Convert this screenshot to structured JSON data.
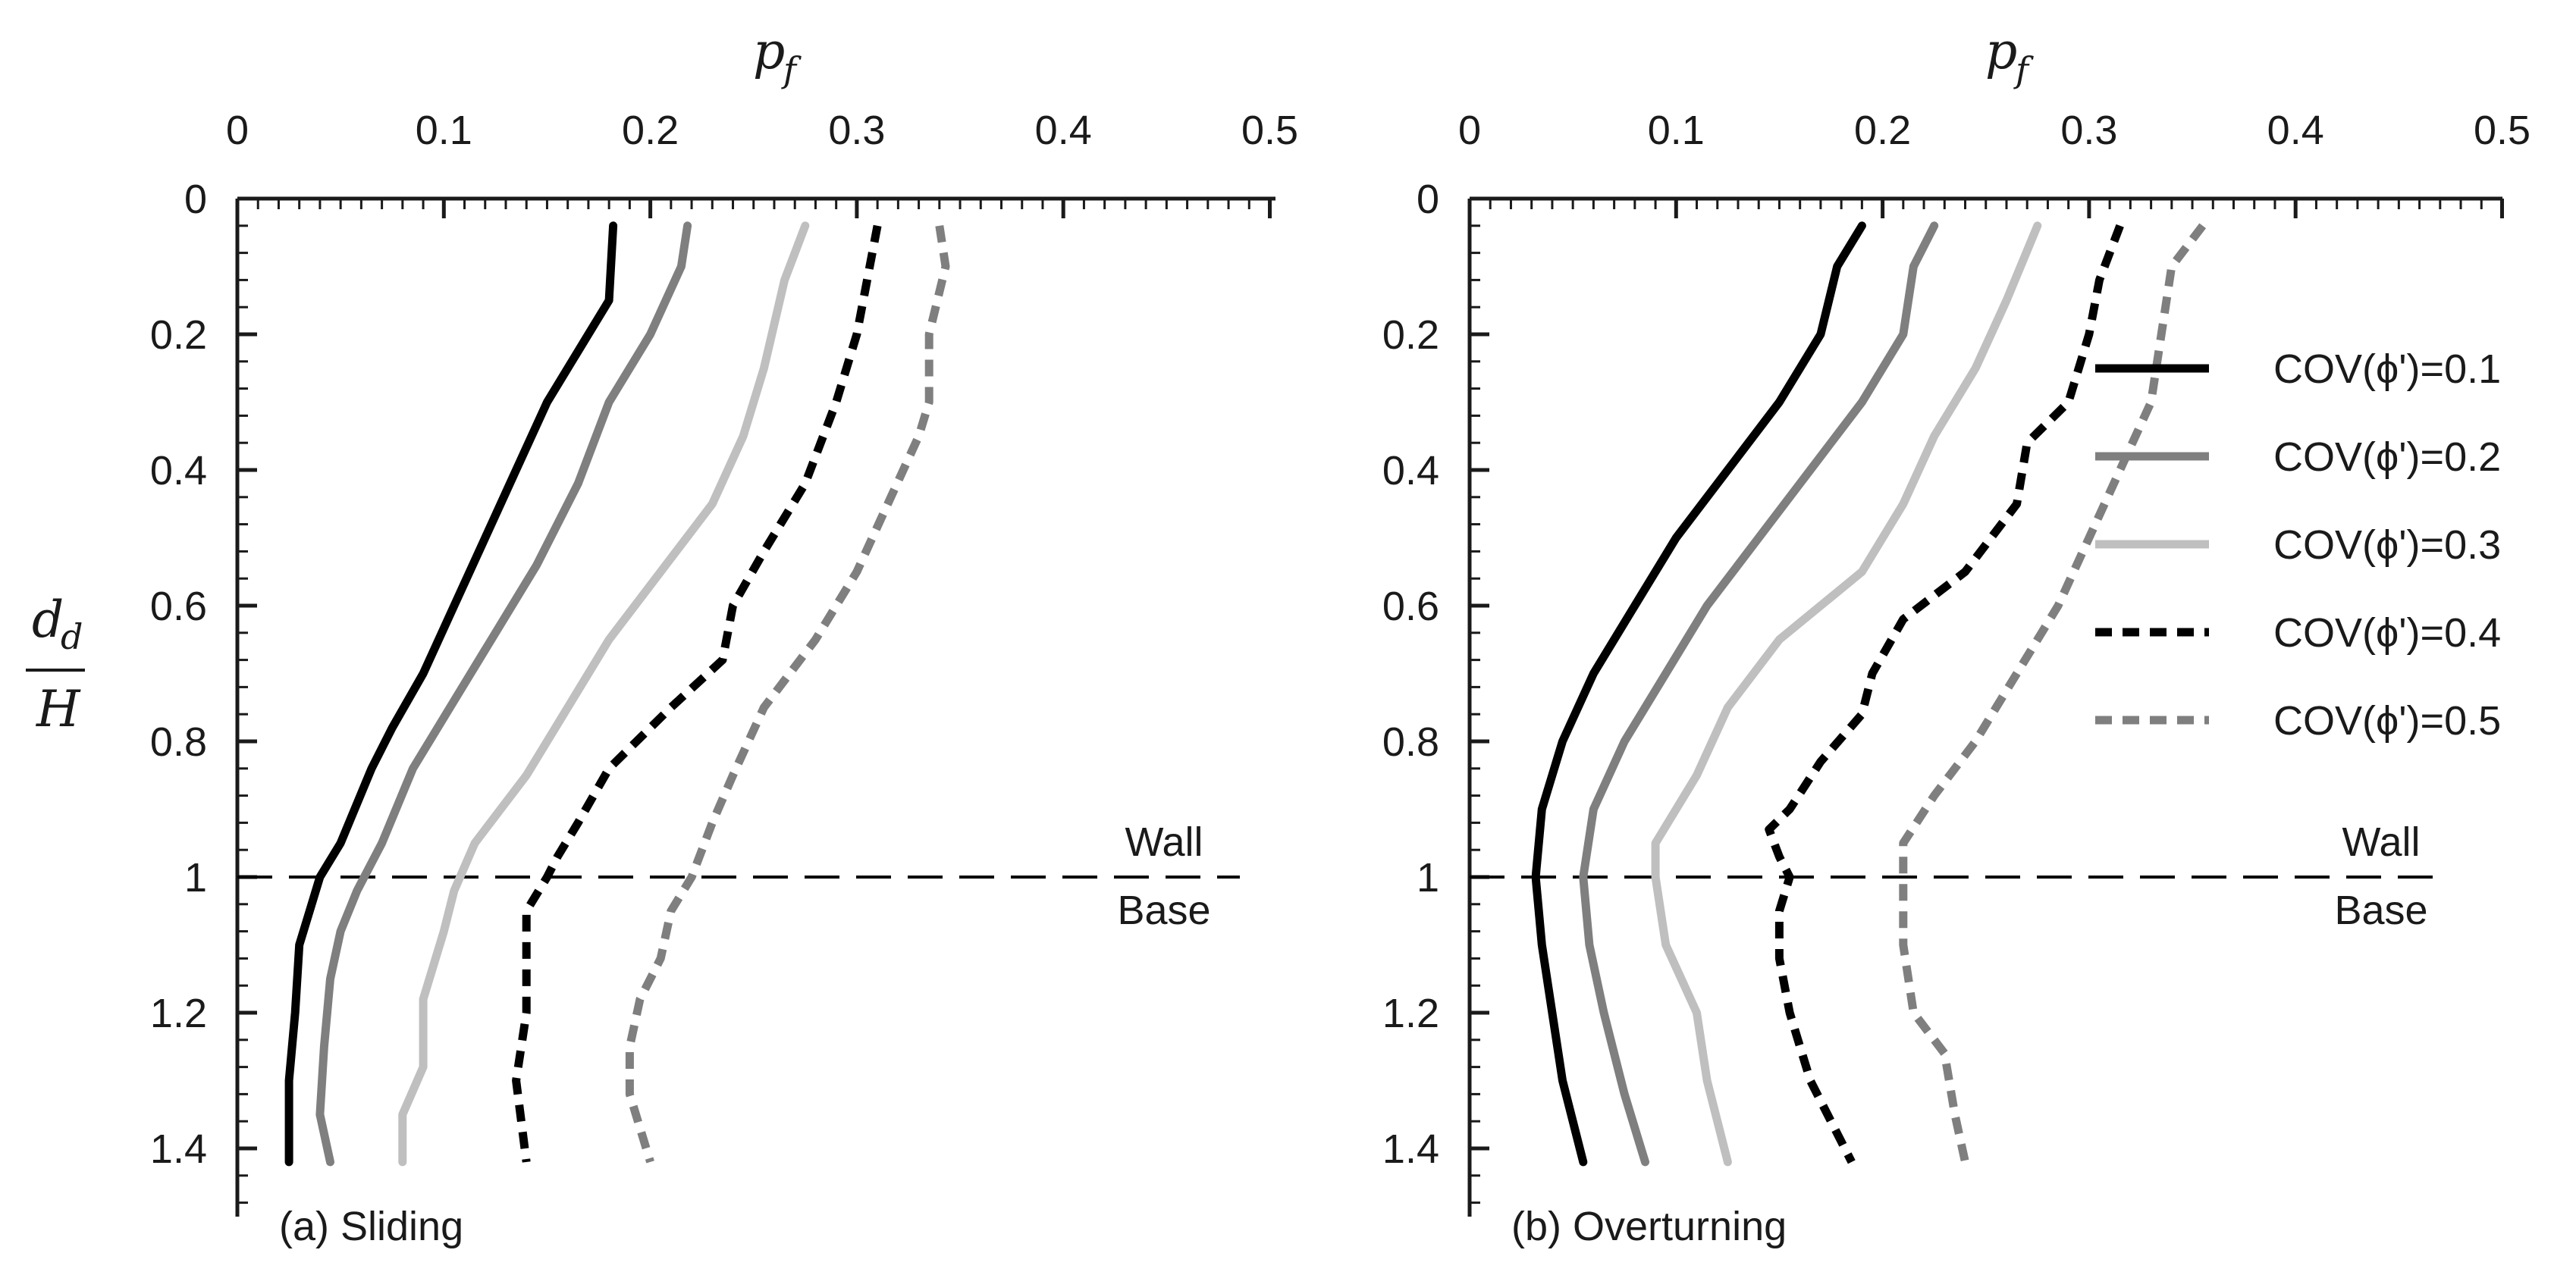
{
  "figure": {
    "ylabel_num": "d",
    "ylabel_sub": "d",
    "ylabel_den": "H"
  },
  "chart_data": [
    {
      "type": "line",
      "panel_label": "(a) Sliding",
      "xlabel": "p",
      "xlabel_sub": "f",
      "xlim": [
        0,
        0.5
      ],
      "xticks": [
        0,
        0.1,
        0.2,
        0.3,
        0.4,
        0.5
      ],
      "xtick_labels": [
        "0",
        "0.1",
        "0.2",
        "0.3",
        "0.4",
        "0.5"
      ],
      "ylim": [
        0,
        1.5
      ],
      "yticks": [
        0,
        0.2,
        0.4,
        0.6,
        0.8,
        1.0,
        1.2,
        1.4
      ],
      "ytick_labels": [
        "0",
        "0.2",
        "0.4",
        "0.6",
        "0.8",
        "1",
        "1.2",
        "1.4"
      ],
      "y_inverted": true,
      "reference_line": {
        "y": 1.0,
        "label_above": "Wall",
        "label_below": "Base"
      },
      "series": [
        {
          "name": "COV(ϕ')=0.1",
          "color": "#000000",
          "dash": "solid",
          "points": [
            [
              0.182,
              0.04
            ],
            [
              0.18,
              0.15
            ],
            [
              0.17,
              0.2
            ],
            [
              0.15,
              0.3
            ],
            [
              0.135,
              0.4
            ],
            [
              0.12,
              0.5
            ],
            [
              0.105,
              0.6
            ],
            [
              0.09,
              0.7
            ],
            [
              0.075,
              0.78
            ],
            [
              0.065,
              0.84
            ],
            [
              0.05,
              0.95
            ],
            [
              0.04,
              1.0
            ],
            [
              0.035,
              1.05
            ],
            [
              0.03,
              1.1
            ],
            [
              0.028,
              1.2
            ],
            [
              0.025,
              1.3
            ],
            [
              0.025,
              1.42
            ]
          ]
        },
        {
          "name": "COV(ϕ')=0.2",
          "color": "#7f7f7f",
          "dash": "solid",
          "points": [
            [
              0.218,
              0.04
            ],
            [
              0.215,
              0.1
            ],
            [
              0.2,
              0.2
            ],
            [
              0.18,
              0.3
            ],
            [
              0.165,
              0.42
            ],
            [
              0.145,
              0.54
            ],
            [
              0.125,
              0.64
            ],
            [
              0.105,
              0.74
            ],
            [
              0.085,
              0.84
            ],
            [
              0.07,
              0.95
            ],
            [
              0.058,
              1.02
            ],
            [
              0.05,
              1.08
            ],
            [
              0.045,
              1.15
            ],
            [
              0.042,
              1.25
            ],
            [
              0.04,
              1.35
            ],
            [
              0.045,
              1.42
            ]
          ]
        },
        {
          "name": "COV(ϕ')=0.3",
          "color": "#bfbfbf",
          "dash": "solid",
          "points": [
            [
              0.275,
              0.04
            ],
            [
              0.265,
              0.12
            ],
            [
              0.255,
              0.25
            ],
            [
              0.245,
              0.35
            ],
            [
              0.23,
              0.45
            ],
            [
              0.205,
              0.55
            ],
            [
              0.18,
              0.65
            ],
            [
              0.16,
              0.75
            ],
            [
              0.14,
              0.85
            ],
            [
              0.115,
              0.95
            ],
            [
              0.105,
              1.02
            ],
            [
              0.1,
              1.08
            ],
            [
              0.09,
              1.18
            ],
            [
              0.09,
              1.28
            ],
            [
              0.08,
              1.35
            ],
            [
              0.08,
              1.42
            ]
          ]
        },
        {
          "name": "COV(ϕ')=0.4",
          "color": "#000000",
          "dash": "dashed",
          "points": [
            [
              0.31,
              0.04
            ],
            [
              0.305,
              0.12
            ],
            [
              0.3,
              0.2
            ],
            [
              0.29,
              0.3
            ],
            [
              0.275,
              0.42
            ],
            [
              0.255,
              0.52
            ],
            [
              0.24,
              0.6
            ],
            [
              0.235,
              0.68
            ],
            [
              0.21,
              0.75
            ],
            [
              0.18,
              0.84
            ],
            [
              0.165,
              0.92
            ],
            [
              0.155,
              0.97
            ],
            [
              0.15,
              1.0
            ],
            [
              0.14,
              1.05
            ],
            [
              0.14,
              1.1
            ],
            [
              0.14,
              1.2
            ],
            [
              0.135,
              1.3
            ],
            [
              0.14,
              1.42
            ]
          ]
        },
        {
          "name": "COV(ϕ')=0.5",
          "color": "#7f7f7f",
          "dash": "dashed",
          "points": [
            [
              0.34,
              0.04
            ],
            [
              0.343,
              0.1
            ],
            [
              0.335,
              0.2
            ],
            [
              0.335,
              0.3
            ],
            [
              0.33,
              0.35
            ],
            [
              0.315,
              0.45
            ],
            [
              0.3,
              0.55
            ],
            [
              0.28,
              0.65
            ],
            [
              0.255,
              0.75
            ],
            [
              0.24,
              0.85
            ],
            [
              0.23,
              0.92
            ],
            [
              0.22,
              1.0
            ],
            [
              0.21,
              1.05
            ],
            [
              0.205,
              1.12
            ],
            [
              0.195,
              1.18
            ],
            [
              0.19,
              1.25
            ],
            [
              0.19,
              1.32
            ],
            [
              0.2,
              1.42
            ]
          ]
        }
      ]
    },
    {
      "type": "line",
      "panel_label": "(b) Overturning",
      "xlabel": "p",
      "xlabel_sub": "f",
      "xlim": [
        0,
        0.5
      ],
      "xticks": [
        0,
        0.1,
        0.2,
        0.3,
        0.4,
        0.5
      ],
      "xtick_labels": [
        "0",
        "0.1",
        "0.2",
        "0.3",
        "0.4",
        "0.5"
      ],
      "ylim": [
        0,
        1.5
      ],
      "yticks": [
        0,
        0.2,
        0.4,
        0.6,
        0.8,
        1.0,
        1.2,
        1.4
      ],
      "ytick_labels": [
        "0",
        "0.2",
        "0.4",
        "0.6",
        "0.8",
        "1",
        "1.2",
        "1.4"
      ],
      "y_inverted": true,
      "reference_line": {
        "y": 1.0,
        "label_above": "Wall",
        "label_below": "Base"
      },
      "series": [
        {
          "name": "COV(ϕ')=0.1",
          "color": "#000000",
          "dash": "solid",
          "points": [
            [
              0.19,
              0.04
            ],
            [
              0.178,
              0.1
            ],
            [
              0.17,
              0.2
            ],
            [
              0.15,
              0.3
            ],
            [
              0.125,
              0.4
            ],
            [
              0.1,
              0.5
            ],
            [
              0.08,
              0.6
            ],
            [
              0.06,
              0.7
            ],
            [
              0.045,
              0.8
            ],
            [
              0.035,
              0.9
            ],
            [
              0.032,
              1.0
            ],
            [
              0.035,
              1.1
            ],
            [
              0.04,
              1.2
            ],
            [
              0.045,
              1.3
            ],
            [
              0.055,
              1.42
            ]
          ]
        },
        {
          "name": "COV(ϕ')=0.2",
          "color": "#7f7f7f",
          "dash": "solid",
          "points": [
            [
              0.225,
              0.04
            ],
            [
              0.215,
              0.1
            ],
            [
              0.21,
              0.2
            ],
            [
              0.19,
              0.3
            ],
            [
              0.165,
              0.4
            ],
            [
              0.14,
              0.5
            ],
            [
              0.115,
              0.6
            ],
            [
              0.095,
              0.7
            ],
            [
              0.075,
              0.8
            ],
            [
              0.06,
              0.9
            ],
            [
              0.055,
              1.0
            ],
            [
              0.058,
              1.1
            ],
            [
              0.065,
              1.2
            ],
            [
              0.075,
              1.32
            ],
            [
              0.085,
              1.42
            ]
          ]
        },
        {
          "name": "COV(ϕ')=0.3",
          "color": "#bfbfbf",
          "dash": "solid",
          "points": [
            [
              0.275,
              0.04
            ],
            [
              0.26,
              0.15
            ],
            [
              0.245,
              0.25
            ],
            [
              0.225,
              0.35
            ],
            [
              0.21,
              0.45
            ],
            [
              0.19,
              0.55
            ],
            [
              0.15,
              0.65
            ],
            [
              0.125,
              0.75
            ],
            [
              0.11,
              0.85
            ],
            [
              0.09,
              0.95
            ],
            [
              0.09,
              1.0
            ],
            [
              0.095,
              1.1
            ],
            [
              0.11,
              1.2
            ],
            [
              0.115,
              1.3
            ],
            [
              0.125,
              1.42
            ]
          ]
        },
        {
          "name": "COV(ϕ')=0.4",
          "color": "#000000",
          "dash": "dashed",
          "points": [
            [
              0.315,
              0.04
            ],
            [
              0.305,
              0.12
            ],
            [
              0.3,
              0.2
            ],
            [
              0.29,
              0.3
            ],
            [
              0.27,
              0.36
            ],
            [
              0.265,
              0.45
            ],
            [
              0.24,
              0.55
            ],
            [
              0.21,
              0.62
            ],
            [
              0.195,
              0.7
            ],
            [
              0.19,
              0.76
            ],
            [
              0.17,
              0.83
            ],
            [
              0.155,
              0.9
            ],
            [
              0.145,
              0.93
            ],
            [
              0.15,
              0.97
            ],
            [
              0.155,
              1.0
            ],
            [
              0.15,
              1.05
            ],
            [
              0.15,
              1.12
            ],
            [
              0.155,
              1.2
            ],
            [
              0.165,
              1.3
            ],
            [
              0.185,
              1.42
            ]
          ]
        },
        {
          "name": "COV(ϕ')=0.5",
          "color": "#7f7f7f",
          "dash": "dashed",
          "points": [
            [
              0.355,
              0.04
            ],
            [
              0.34,
              0.1
            ],
            [
              0.335,
              0.2
            ],
            [
              0.33,
              0.3
            ],
            [
              0.315,
              0.4
            ],
            [
              0.3,
              0.5
            ],
            [
              0.285,
              0.6
            ],
            [
              0.265,
              0.7
            ],
            [
              0.245,
              0.8
            ],
            [
              0.225,
              0.88
            ],
            [
              0.21,
              0.95
            ],
            [
              0.21,
              1.0
            ],
            [
              0.21,
              1.1
            ],
            [
              0.215,
              1.2
            ],
            [
              0.23,
              1.26
            ],
            [
              0.235,
              1.35
            ],
            [
              0.24,
              1.42
            ]
          ]
        }
      ]
    }
  ]
}
